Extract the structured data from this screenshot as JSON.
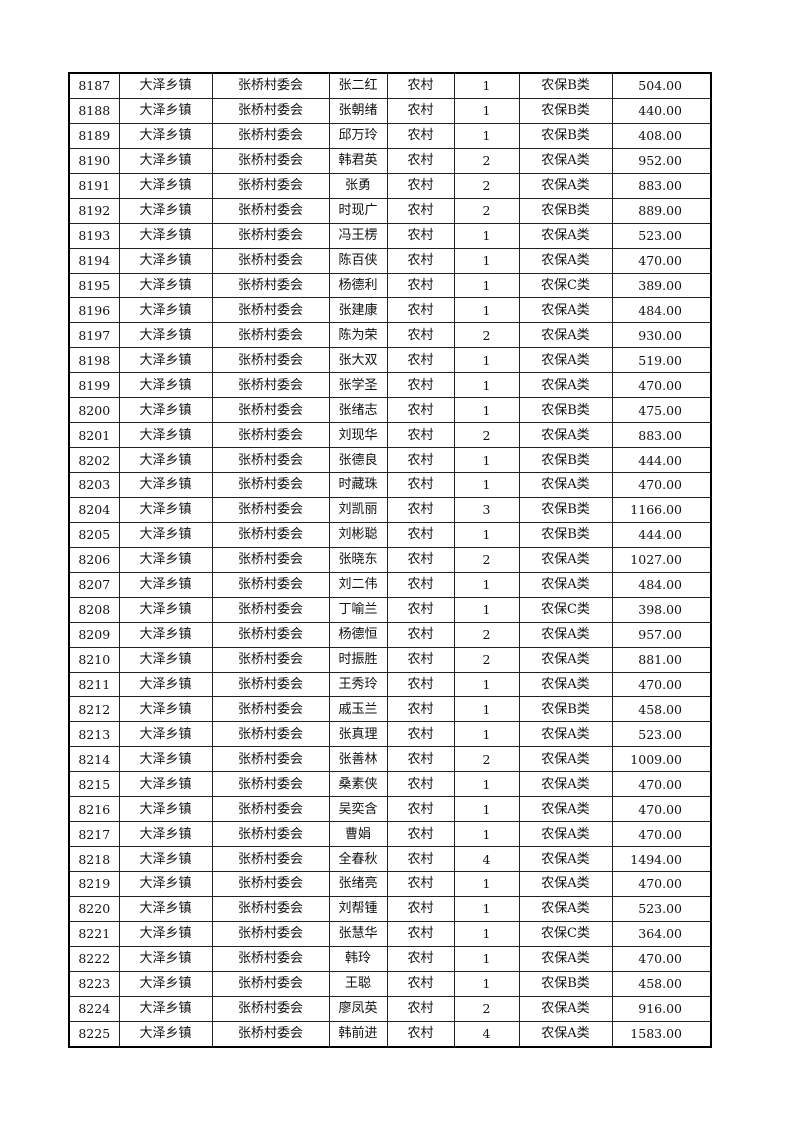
{
  "table": {
    "rows": [
      [
        "8187",
        "大泽乡镇",
        "张桥村委会",
        "张二红",
        "农村",
        "1",
        "农保B类",
        "504.00"
      ],
      [
        "8188",
        "大泽乡镇",
        "张桥村委会",
        "张朝绪",
        "农村",
        "1",
        "农保B类",
        "440.00"
      ],
      [
        "8189",
        "大泽乡镇",
        "张桥村委会",
        "邱万玲",
        "农村",
        "1",
        "农保B类",
        "408.00"
      ],
      [
        "8190",
        "大泽乡镇",
        "张桥村委会",
        "韩君英",
        "农村",
        "2",
        "农保A类",
        "952.00"
      ],
      [
        "8191",
        "大泽乡镇",
        "张桥村委会",
        "张勇",
        "农村",
        "2",
        "农保A类",
        "883.00"
      ],
      [
        "8192",
        "大泽乡镇",
        "张桥村委会",
        "时现广",
        "农村",
        "2",
        "农保B类",
        "889.00"
      ],
      [
        "8193",
        "大泽乡镇",
        "张桥村委会",
        "冯王楞",
        "农村",
        "1",
        "农保A类",
        "523.00"
      ],
      [
        "8194",
        "大泽乡镇",
        "张桥村委会",
        "陈百侠",
        "农村",
        "1",
        "农保A类",
        "470.00"
      ],
      [
        "8195",
        "大泽乡镇",
        "张桥村委会",
        "杨德利",
        "农村",
        "1",
        "农保C类",
        "389.00"
      ],
      [
        "8196",
        "大泽乡镇",
        "张桥村委会",
        "张建康",
        "农村",
        "1",
        "农保A类",
        "484.00"
      ],
      [
        "8197",
        "大泽乡镇",
        "张桥村委会",
        "陈为荣",
        "农村",
        "2",
        "农保A类",
        "930.00"
      ],
      [
        "8198",
        "大泽乡镇",
        "张桥村委会",
        "张大双",
        "农村",
        "1",
        "农保A类",
        "519.00"
      ],
      [
        "8199",
        "大泽乡镇",
        "张桥村委会",
        "张学圣",
        "农村",
        "1",
        "农保A类",
        "470.00"
      ],
      [
        "8200",
        "大泽乡镇",
        "张桥村委会",
        "张绪志",
        "农村",
        "1",
        "农保B类",
        "475.00"
      ],
      [
        "8201",
        "大泽乡镇",
        "张桥村委会",
        "刘现华",
        "农村",
        "2",
        "农保A类",
        "883.00"
      ],
      [
        "8202",
        "大泽乡镇",
        "张桥村委会",
        "张德良",
        "农村",
        "1",
        "农保B类",
        "444.00"
      ],
      [
        "8203",
        "大泽乡镇",
        "张桥村委会",
        "时藏珠",
        "农村",
        "1",
        "农保A类",
        "470.00"
      ],
      [
        "8204",
        "大泽乡镇",
        "张桥村委会",
        "刘凯丽",
        "农村",
        "3",
        "农保B类",
        "1166.00"
      ],
      [
        "8205",
        "大泽乡镇",
        "张桥村委会",
        "刘彬聪",
        "农村",
        "1",
        "农保B类",
        "444.00"
      ],
      [
        "8206",
        "大泽乡镇",
        "张桥村委会",
        "张晓东",
        "农村",
        "2",
        "农保A类",
        "1027.00"
      ],
      [
        "8207",
        "大泽乡镇",
        "张桥村委会",
        "刘二伟",
        "农村",
        "1",
        "农保A类",
        "484.00"
      ],
      [
        "8208",
        "大泽乡镇",
        "张桥村委会",
        "丁喻兰",
        "农村",
        "1",
        "农保C类",
        "398.00"
      ],
      [
        "8209",
        "大泽乡镇",
        "张桥村委会",
        "杨德恒",
        "农村",
        "2",
        "农保A类",
        "957.00"
      ],
      [
        "8210",
        "大泽乡镇",
        "张桥村委会",
        "时振胜",
        "农村",
        "2",
        "农保A类",
        "881.00"
      ],
      [
        "8211",
        "大泽乡镇",
        "张桥村委会",
        "王秀玲",
        "农村",
        "1",
        "农保A类",
        "470.00"
      ],
      [
        "8212",
        "大泽乡镇",
        "张桥村委会",
        "戚玉兰",
        "农村",
        "1",
        "农保B类",
        "458.00"
      ],
      [
        "8213",
        "大泽乡镇",
        "张桥村委会",
        "张真理",
        "农村",
        "1",
        "农保A类",
        "523.00"
      ],
      [
        "8214",
        "大泽乡镇",
        "张桥村委会",
        "张善林",
        "农村",
        "2",
        "农保A类",
        "1009.00"
      ],
      [
        "8215",
        "大泽乡镇",
        "张桥村委会",
        "桑素侠",
        "农村",
        "1",
        "农保A类",
        "470.00"
      ],
      [
        "8216",
        "大泽乡镇",
        "张桥村委会",
        "吴奕含",
        "农村",
        "1",
        "农保A类",
        "470.00"
      ],
      [
        "8217",
        "大泽乡镇",
        "张桥村委会",
        "曹娟",
        "农村",
        "1",
        "农保A类",
        "470.00"
      ],
      [
        "8218",
        "大泽乡镇",
        "张桥村委会",
        "全春秋",
        "农村",
        "4",
        "农保A类",
        "1494.00"
      ],
      [
        "8219",
        "大泽乡镇",
        "张桥村委会",
        "张绪亮",
        "农村",
        "1",
        "农保A类",
        "470.00"
      ],
      [
        "8220",
        "大泽乡镇",
        "张桥村委会",
        "刘帮锺",
        "农村",
        "1",
        "农保A类",
        "523.00"
      ],
      [
        "8221",
        "大泽乡镇",
        "张桥村委会",
        "张慧华",
        "农村",
        "1",
        "农保C类",
        "364.00"
      ],
      [
        "8222",
        "大泽乡镇",
        "张桥村委会",
        "韩玲",
        "农村",
        "1",
        "农保A类",
        "470.00"
      ],
      [
        "8223",
        "大泽乡镇",
        "张桥村委会",
        "王聪",
        "农村",
        "1",
        "农保B类",
        "458.00"
      ],
      [
        "8224",
        "大泽乡镇",
        "张桥村委会",
        "廖凤英",
        "农村",
        "2",
        "农保A类",
        "916.00"
      ],
      [
        "8225",
        "大泽乡镇",
        "张桥村委会",
        "韩前进",
        "农村",
        "4",
        "农保A类",
        "1583.00"
      ]
    ]
  }
}
